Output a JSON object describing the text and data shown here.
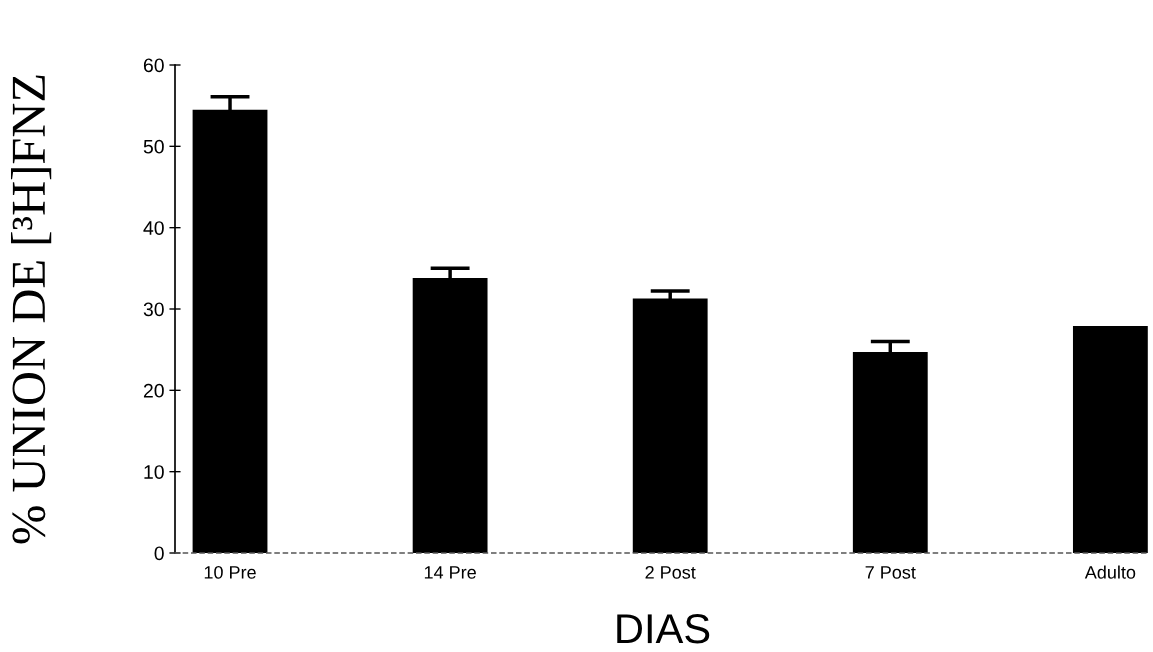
{
  "chart_data": {
    "type": "bar",
    "xlabel": "DIAS",
    "ylabel": "% UNION DE [³H]FNZ",
    "categories": [
      "10 Pre",
      "14 Pre",
      "2 Post",
      "7 Post",
      "Adulto"
    ],
    "values": [
      54.5,
      33.8,
      31.3,
      24.7,
      27.9
    ],
    "errors": [
      1.6,
      1.2,
      0.9,
      1.3,
      null
    ],
    "color": "#000000",
    "ylim": [
      0,
      60
    ],
    "yticks": [
      0,
      10,
      20,
      30,
      40,
      50,
      60
    ]
  }
}
